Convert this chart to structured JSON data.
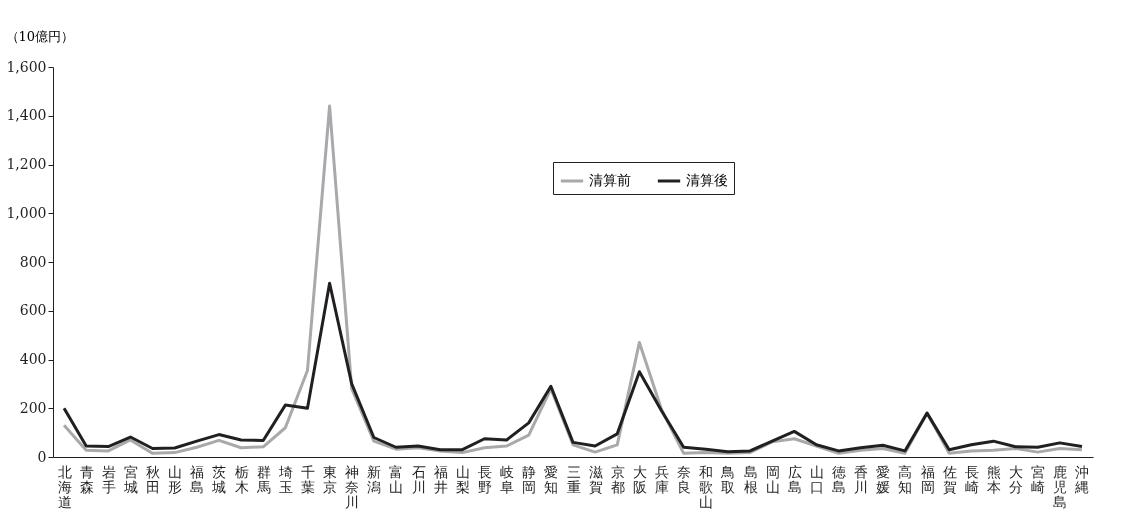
{
  "chart_data": {
    "type": "line",
    "ylabel": "（10億円）",
    "categories": [
      "北海道",
      "青森",
      "岩手",
      "宮城",
      "秋田",
      "山形",
      "福島",
      "茨城",
      "栃木",
      "群馬",
      "埼玉",
      "千葉",
      "東京",
      "神奈川",
      "新潟",
      "富山",
      "石川",
      "福井",
      "山梨",
      "長野",
      "岐阜",
      "静岡",
      "愛知",
      "三重",
      "滋賀",
      "京都",
      "大阪",
      "兵庫",
      "奈良",
      "和歌山",
      "鳥取",
      "島根",
      "岡山",
      "広島",
      "山口",
      "徳島",
      "香川",
      "愛媛",
      "高知",
      "福岡",
      "佐賀",
      "長崎",
      "熊本",
      "大分",
      "宮崎",
      "鹿児島",
      "沖縄"
    ],
    "series": [
      {
        "name": "清算前",
        "color": "#a7a9ac",
        "values": [
          130,
          28,
          25,
          70,
          15,
          18,
          40,
          68,
          38,
          42,
          120,
          355,
          1440,
          280,
          65,
          32,
          38,
          25,
          18,
          38,
          45,
          90,
          280,
          50,
          20,
          50,
          470,
          195,
          15,
          18,
          15,
          18,
          62,
          75,
          45,
          15,
          28,
          35,
          15,
          180,
          15,
          25,
          28,
          35,
          20,
          35,
          30
        ]
      },
      {
        "name": "清算後",
        "color": "#231f20",
        "values": [
          200,
          45,
          43,
          82,
          35,
          37,
          65,
          92,
          70,
          68,
          213,
          200,
          713,
          300,
          80,
          40,
          45,
          30,
          30,
          75,
          70,
          140,
          290,
          60,
          45,
          95,
          350,
          190,
          40,
          32,
          22,
          25,
          65,
          105,
          50,
          25,
          38,
          48,
          25,
          180,
          30,
          50,
          65,
          42,
          40,
          58,
          43
        ]
      }
    ],
    "ylim": [
      0,
      1600
    ],
    "yticks": [
      0,
      {
        "value": 200,
        "label": "200"
      },
      {
        "value": 400,
        "label": "400"
      },
      {
        "value": 600,
        "label": "600"
      },
      {
        "value": 800,
        "label": "800"
      },
      {
        "value": 1000,
        "label": "1,000"
      },
      {
        "value": 1200,
        "label": "1,200"
      },
      {
        "value": 1400,
        "label": "1,400"
      },
      {
        "value": 1600,
        "label": "1,600"
      }
    ],
    "grid": false,
    "legend": "top",
    "line_style": "solid",
    "marker": "none"
  }
}
